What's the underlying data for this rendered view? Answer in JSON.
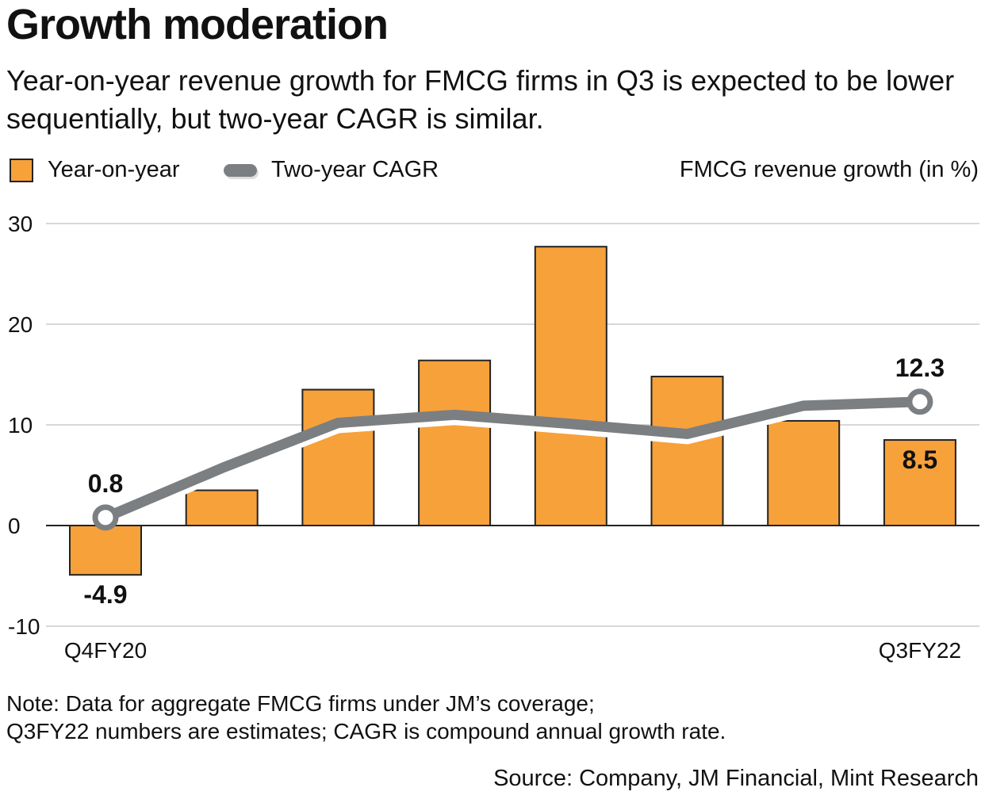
{
  "title": "Growth moderation",
  "subtitle": "Year-on-year revenue growth for FMCG firms in Q3 is expected to be lower sequentially, but two-year CAGR is similar.",
  "note_lines": [
    "Note: Data for aggregate FMCG firms under JM’s coverage;",
    "Q3FY22 numbers are estimates; CAGR is compound annual growth rate."
  ],
  "source": "Source: Company, JM Financial, Mint Research",
  "chart_data": {
    "type": "bar",
    "ylabel": "FMCG revenue growth (in %)",
    "ylim": [
      -10,
      30
    ],
    "yticks": [
      30,
      20,
      10,
      0,
      -10
    ],
    "grid": true,
    "legend_placement": "top-left",
    "tick_labels": [
      "Q4FY20",
      "",
      "",
      "",
      "",
      "",
      "",
      "Q3FY22"
    ],
    "series": [
      {
        "name": "Year-on-year",
        "type": "bar",
        "color": "#f7a13b",
        "values": [
          -4.9,
          3.5,
          13.5,
          16.4,
          27.7,
          14.8,
          10.4,
          8.5
        ],
        "data_labels": [
          "-4.9",
          "",
          "",
          "",
          "",
          "",
          "",
          "8.5"
        ]
      },
      {
        "name": "Two-year CAGR",
        "type": "line",
        "color": "#7b7f82",
        "values": [
          0.8,
          5.7,
          10.2,
          11.0,
          10.1,
          9.1,
          11.9,
          12.3
        ],
        "data_labels": [
          "0.8",
          "",
          "",
          "",
          "",
          "",
          "",
          "12.3"
        ]
      }
    ]
  }
}
